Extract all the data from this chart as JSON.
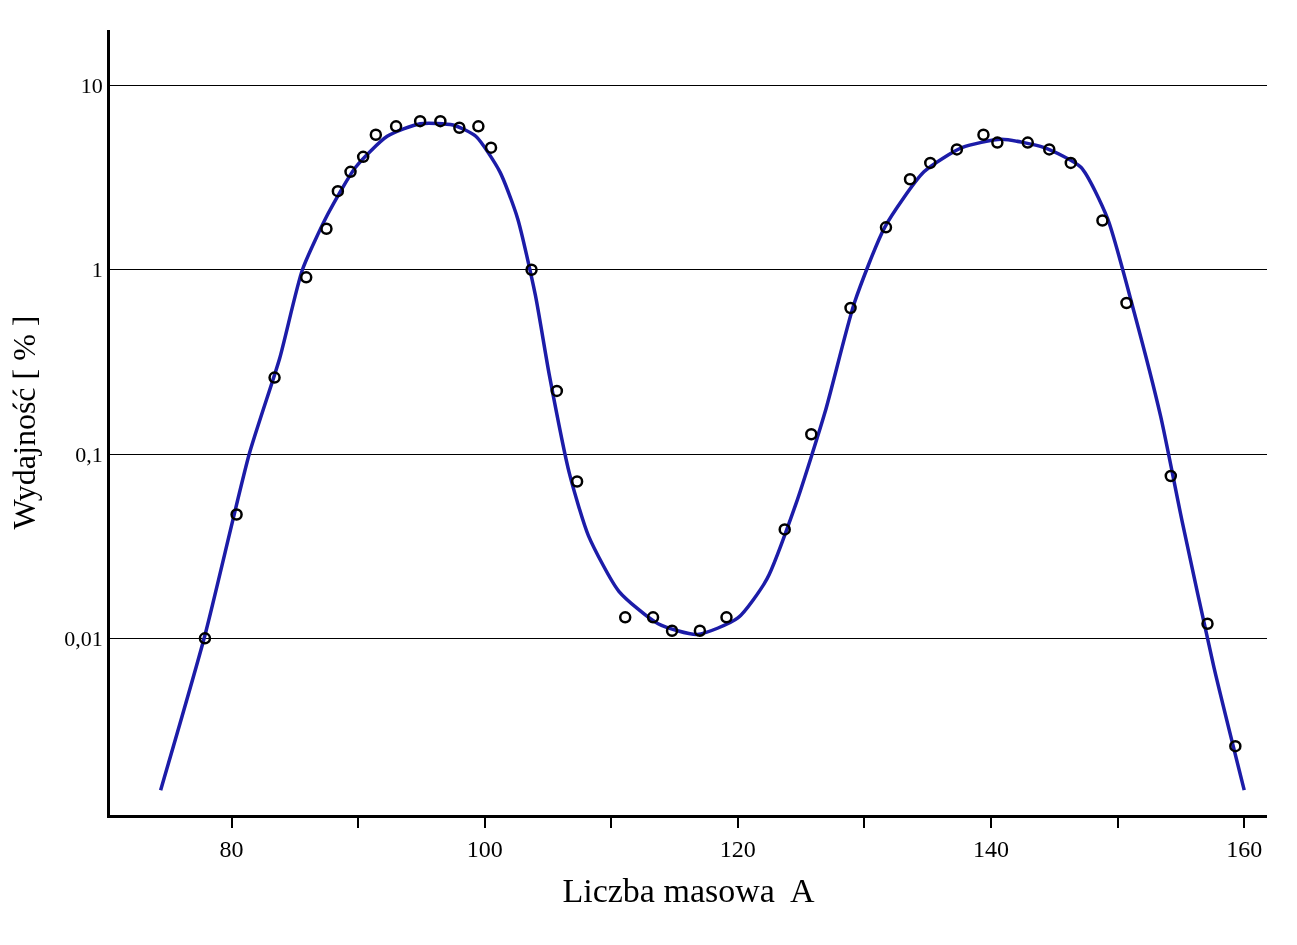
{
  "chart_data": {
    "type": "scatter",
    "xlabel": "Liczba masowa  A",
    "ylabel": "Wydajność [ % ]",
    "log": "y",
    "grid": "y",
    "xlim": [
      70.4,
      161.8
    ],
    "ylim": [
      0.0011,
      20
    ],
    "xticks": [
      80,
      {
        "value": 90,
        "label": null
      },
      100,
      {
        "value": 110,
        "label": null
      },
      120,
      {
        "value": 130,
        "label": null
      },
      140,
      {
        "value": 150,
        "label": null
      },
      160
    ],
    "yticks": [
      {
        "value": 0.01,
        "label": "0,01"
      },
      {
        "value": 0.1,
        "label": "0,1"
      },
      1,
      10
    ],
    "series": [
      {
        "type": "line",
        "color": "#1c1ca8",
        "marker": "none",
        "line_style": "solid",
        "x": [
          74.4,
          77.9,
          81.4,
          83.8,
          85.6,
          87.6,
          89.8,
          92.3,
          94.9,
          97.5,
          99.3,
          101.2,
          102.6,
          104.0,
          105.1,
          106.7,
          108.2,
          110.6,
          113.7,
          116.8,
          120.0,
          122.3,
          124.6,
          126.9,
          129.2,
          131.6,
          134.7,
          137.7,
          140.8,
          144.2,
          147.1,
          149.2,
          151.3,
          153.4,
          155.1,
          157.6,
          160.0
        ],
        "values": [
          0.0015,
          0.0104,
          0.1,
          0.33,
          1.0,
          2.0,
          3.6,
          5.3,
          6.2,
          6.1,
          5.3,
          3.4,
          1.9,
          0.73,
          0.27,
          0.078,
          0.036,
          0.018,
          0.012,
          0.0105,
          0.0129,
          0.021,
          0.054,
          0.17,
          0.66,
          1.7,
          3.4,
          4.6,
          5.1,
          4.6,
          3.6,
          1.9,
          0.59,
          0.16,
          0.043,
          0.007,
          0.0015
        ]
      },
      {
        "color": "#000000",
        "marker": "circle",
        "x": [
          77.9,
          80.4,
          83.4,
          85.9,
          87.5,
          88.4,
          89.4,
          90.4,
          91.4,
          93.0,
          94.9,
          96.5,
          98.0,
          99.5,
          100.5,
          103.7,
          105.7,
          107.3,
          111.1,
          113.3,
          114.8,
          117.0,
          119.1,
          123.7,
          125.8,
          128.9,
          131.7,
          133.6,
          135.2,
          137.3,
          139.4,
          140.5,
          142.9,
          144.6,
          146.3,
          148.8,
          150.7,
          154.2,
          157.1,
          159.3
        ],
        "values": [
          0.01,
          0.047,
          0.26,
          0.91,
          1.67,
          2.67,
          3.4,
          4.1,
          5.4,
          6.0,
          6.4,
          6.4,
          5.9,
          6.0,
          4.6,
          1.0,
          0.22,
          0.071,
          0.013,
          0.013,
          0.011,
          0.011,
          0.013,
          0.039,
          0.128,
          0.62,
          1.7,
          3.1,
          3.8,
          4.5,
          5.4,
          4.9,
          4.9,
          4.5,
          3.8,
          1.85,
          0.66,
          0.076,
          0.012,
          0.0026
        ]
      }
    ]
  }
}
